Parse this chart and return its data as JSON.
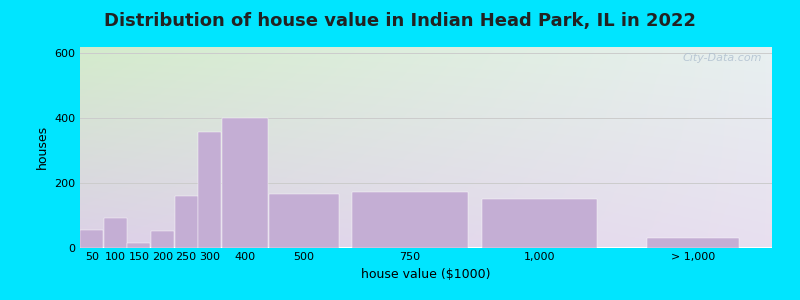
{
  "title": "Distribution of house value in Indian Head Park, IL in 2022",
  "xlabel": "house value ($1000)",
  "ylabel": "houses",
  "bar_labels": [
    "50",
    "100",
    "150",
    "200",
    "250",
    "300",
    "400",
    "500",
    "750",
    "1,000",
    "> 1,000"
  ],
  "bar_values": [
    55,
    90,
    15,
    50,
    160,
    355,
    400,
    165,
    170,
    150,
    30
  ],
  "bar_color": "#c4aed4",
  "ylim": [
    0,
    620
  ],
  "yticks": [
    0,
    200,
    400,
    600
  ],
  "background_outer": "#00e5ff",
  "bg_top_left": "#d4eccc",
  "bg_top_right": "#e8f0f0",
  "bg_bottom_left": "#ddd0e8",
  "bg_bottom_right": "#e8e0f0",
  "grid_color": "#cccccc",
  "title_fontsize": 13,
  "axis_label_fontsize": 9,
  "tick_fontsize": 8,
  "watermark_text": "City-Data.com",
  "bar_positions": [
    0.5,
    1.5,
    2.5,
    3.5,
    4.5,
    5.5,
    7.0,
    9.5,
    14.0,
    19.5,
    26.0
  ],
  "bar_widths": [
    1.0,
    1.0,
    1.0,
    1.0,
    1.0,
    1.0,
    2.0,
    3.0,
    5.0,
    5.0,
    4.0
  ]
}
